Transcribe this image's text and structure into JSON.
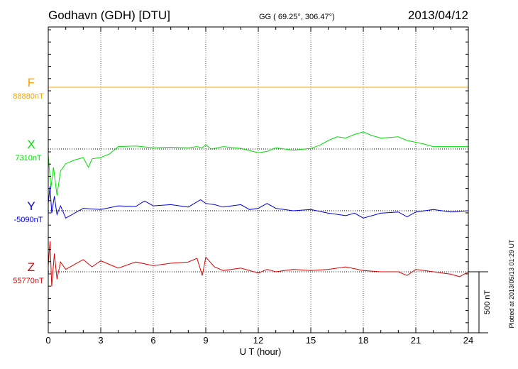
{
  "header": {
    "station": "Godhavn (GDH)  [DTU]",
    "coords": "GG ( 69.25°, 306.47°)",
    "date": "2013/04/12"
  },
  "footer": {
    "plotted": "Plotted at 2013/05/13 01:29 UT"
  },
  "colors": {
    "F": "#f5a300",
    "X": "#00e000",
    "Y": "#0000dd",
    "Z": "#e00000",
    "axis": "#000000",
    "grid": "#555555"
  },
  "chart_data": {
    "type": "line",
    "xlabel": "U T (hour)",
    "xlim": [
      0,
      24
    ],
    "xticks": [
      "0",
      "3",
      "6",
      "9",
      "12",
      "15",
      "18",
      "21",
      "24"
    ],
    "scale_bar": "500 nT",
    "series": [
      {
        "name": "F",
        "baseline_label": "88880nT",
        "x": [
          0,
          6,
          12,
          18,
          24
        ],
        "y": [
          0,
          0,
          0,
          0,
          0
        ]
      },
      {
        "name": "X",
        "baseline_label": "7310nT",
        "x": [
          0,
          0.15,
          0.3,
          0.5,
          0.7,
          1,
          1.5,
          2,
          2.3,
          2.5,
          3,
          3.5,
          4,
          5,
          6,
          7,
          8,
          8.5,
          8.8,
          9,
          9.3,
          10,
          11,
          12,
          12.5,
          13,
          14,
          15,
          15.5,
          16,
          16.5,
          17,
          17.5,
          18,
          18.5,
          19,
          19.5,
          20,
          20.5,
          21,
          21.5,
          22,
          23,
          24
        ],
        "y": [
          -50,
          -320,
          -150,
          -380,
          -180,
          -120,
          -90,
          -70,
          -150,
          -80,
          -70,
          -40,
          20,
          25,
          10,
          15,
          10,
          20,
          10,
          35,
          0,
          20,
          5,
          -30,
          -20,
          10,
          -10,
          5,
          30,
          70,
          100,
          90,
          120,
          140,
          110,
          90,
          95,
          100,
          70,
          55,
          40,
          20,
          20,
          20
        ]
      },
      {
        "name": "Y",
        "baseline_label": "-5090nT",
        "x": [
          0,
          0.1,
          0.2,
          0.35,
          0.5,
          0.7,
          1,
          1.5,
          2,
          3,
          4,
          5,
          5.5,
          6,
          7,
          8,
          8.7,
          9,
          9.5,
          10,
          11,
          11.5,
          12,
          12.5,
          13,
          14,
          15,
          16,
          17,
          17.5,
          18,
          19,
          20,
          20.5,
          21,
          22,
          23,
          24
        ],
        "y": [
          60,
          200,
          -20,
          120,
          -30,
          40,
          -60,
          -20,
          20,
          10,
          40,
          35,
          80,
          40,
          50,
          30,
          90,
          60,
          50,
          30,
          50,
          10,
          20,
          60,
          20,
          0,
          10,
          -20,
          -40,
          -20,
          -60,
          -20,
          -10,
          -50,
          -10,
          10,
          -10,
          0
        ]
      },
      {
        "name": "Z",
        "baseline_label": "55770nT",
        "x": [
          0,
          0.1,
          0.2,
          0.35,
          0.5,
          0.7,
          1,
          1.5,
          2,
          2.5,
          3,
          4,
          5,
          6,
          7,
          8,
          8.5,
          8.8,
          9,
          9.5,
          10,
          11,
          12,
          12.5,
          13,
          14,
          15,
          16,
          17,
          18,
          19,
          20,
          20.5,
          21,
          22,
          23,
          23.5,
          24
        ],
        "y": [
          50,
          250,
          -120,
          150,
          -60,
          80,
          20,
          60,
          100,
          40,
          90,
          30,
          80,
          50,
          70,
          80,
          110,
          -30,
          120,
          40,
          10,
          30,
          -10,
          20,
          0,
          20,
          10,
          20,
          40,
          10,
          0,
          0,
          -30,
          20,
          0,
          -20,
          -40,
          0
        ]
      }
    ]
  }
}
